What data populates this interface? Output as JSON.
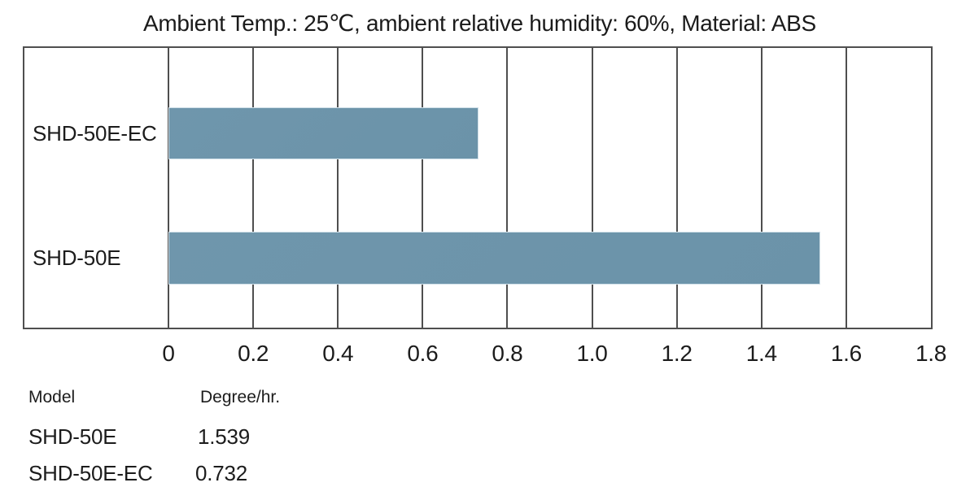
{
  "chart_data": {
    "type": "bar",
    "orientation": "horizontal",
    "title": "Ambient Temp.: 25℃, ambient relative humidity: 60%, Material: ABS",
    "categories": [
      "SHD-50E-EC",
      "SHD-50E"
    ],
    "values": [
      0.732,
      1.539
    ],
    "xlabel": "",
    "ylabel": "",
    "xlim": [
      0,
      1.8
    ],
    "xticks": [
      "0",
      "0.2",
      "0.4",
      "0.6",
      "0.8",
      "1.0",
      "1.2",
      "1.4",
      "1.6",
      "1.8"
    ],
    "grid": true,
    "legend": false,
    "bar_color": "#6f96ac",
    "grid_color": "#4f4f4f"
  },
  "table": {
    "headers": [
      "Model",
      "Degree/hr."
    ],
    "rows": [
      {
        "model": "SHD-50E",
        "value": "1.539"
      },
      {
        "model": "SHD-50E-EC",
        "value": "0.732"
      }
    ]
  }
}
